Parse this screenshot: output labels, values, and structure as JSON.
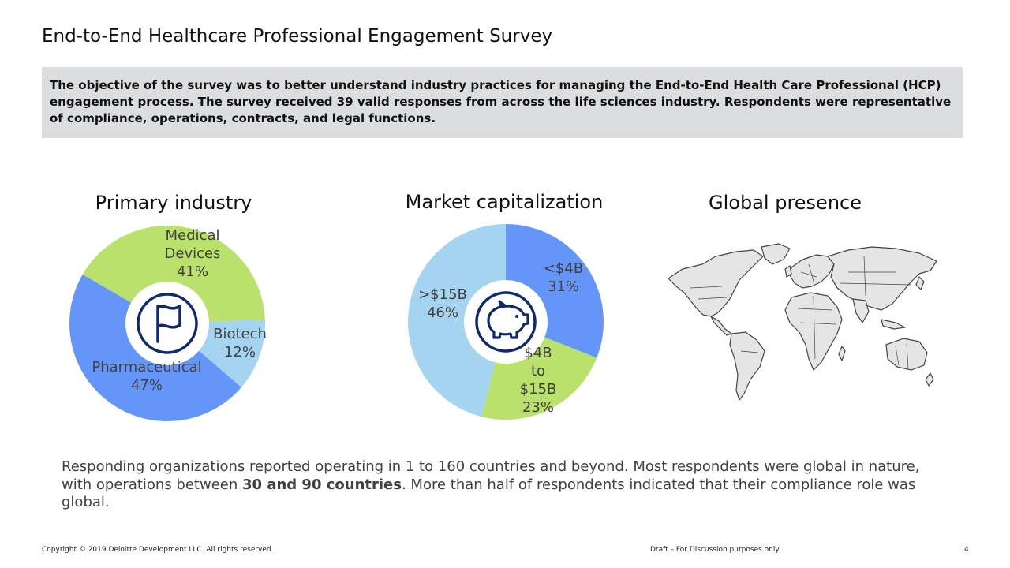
{
  "title": "End-to-End Healthcare Professional Engagement Survey",
  "objective": "The objective of the survey was to better understand industry practices for managing the End-to-End Health Care Professional (HCP) engagement process. The survey received 39 valid responses from across the life sciences industry. Respondents were representative of compliance, operations, contracts, and legal functions.",
  "chart_data": [
    {
      "type": "pie",
      "title": "Primary industry",
      "center_icon": "flag-icon",
      "slices": [
        {
          "label": [
            "Medical",
            "Devices"
          ],
          "pct_label": "41%",
          "value": 41,
          "color": "#b9e16c"
        },
        {
          "label": [
            "Biotech"
          ],
          "pct_label": "12%",
          "value": 12,
          "color": "#a5d4f0"
        },
        {
          "label": [
            "Pharmaceutical"
          ],
          "pct_label": "47%",
          "value": 47,
          "color": "#6496fa"
        }
      ]
    },
    {
      "type": "pie",
      "title": "Market capitalization",
      "center_icon": "piggy-bank-icon",
      "slices": [
        {
          "label": [
            "<$4B"
          ],
          "pct_label": "31%",
          "value": 31,
          "color": "#6496fa"
        },
        {
          "label": [
            "$4B",
            "to",
            "$15B"
          ],
          "pct_label": "23%",
          "value": 23,
          "color": "#b9e16c"
        },
        {
          "label": [
            ">$15B"
          ],
          "pct_label": "46%",
          "value": 46,
          "color": "#a5d4f0"
        }
      ]
    }
  ],
  "global_presence": {
    "title": "Global presence",
    "map_icon": "world-map-icon",
    "land_color": "#e5e5e5",
    "border_color": "#444444"
  },
  "summary": {
    "part1": "Responding organizations reported operating in 1 to 160 countries and beyond. Most respondents were global in nature, with operations between ",
    "bold": "30 and 90 countries",
    "part2": ". More than half of respondents indicated that their compliance role was global."
  },
  "footer": {
    "copyright": "Copyright © 2019 Deloitte Development LLC. All rights reserved.",
    "draft": "Draft – For Discussion purposes only",
    "page_number": "4"
  },
  "colors": {
    "blue": "#6496fa",
    "green": "#b9e16c",
    "light_blue": "#a5d4f0",
    "icon_navy": "#0f2a6b",
    "box_gray": "#dcdddf"
  }
}
